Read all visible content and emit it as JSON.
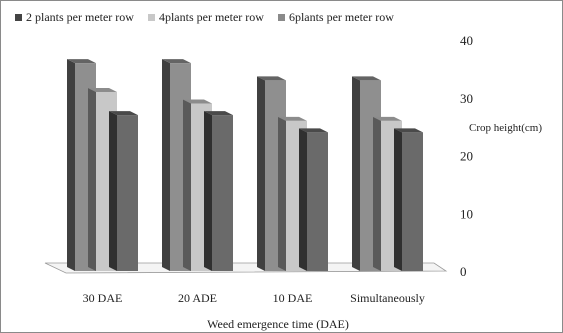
{
  "chart_data": {
    "type": "bar",
    "categories": [
      "30 DAE",
      "20 ADE",
      "10 DAE",
      "Simultaneously"
    ],
    "series": [
      {
        "name": "2 plants per meter row",
        "values": [
          36,
          36,
          33,
          33
        ],
        "color": "#8f8f8f",
        "legend_color": "#444444"
      },
      {
        "name": "4plants per meter row",
        "values": [
          31,
          29,
          26,
          26
        ],
        "color": "#c8c8c8",
        "legend_color": "#c8c8c8"
      },
      {
        "name": "6plants per meter row",
        "values": [
          27,
          27,
          24,
          24
        ],
        "color": "#6a6a6a",
        "legend_color": "#8a8a8a"
      }
    ],
    "xlabel": "Weed emergence time (DAE)",
    "ylabel": "Crop height(cm)",
    "ylim": [
      0,
      40
    ],
    "yticks": [
      0,
      10,
      20,
      30,
      40
    ],
    "ytick_labels": [
      "0",
      "10",
      "20",
      "30",
      "40"
    ],
    "grid": false,
    "legend_position": "top-left",
    "style": "3d-clustered-column"
  }
}
